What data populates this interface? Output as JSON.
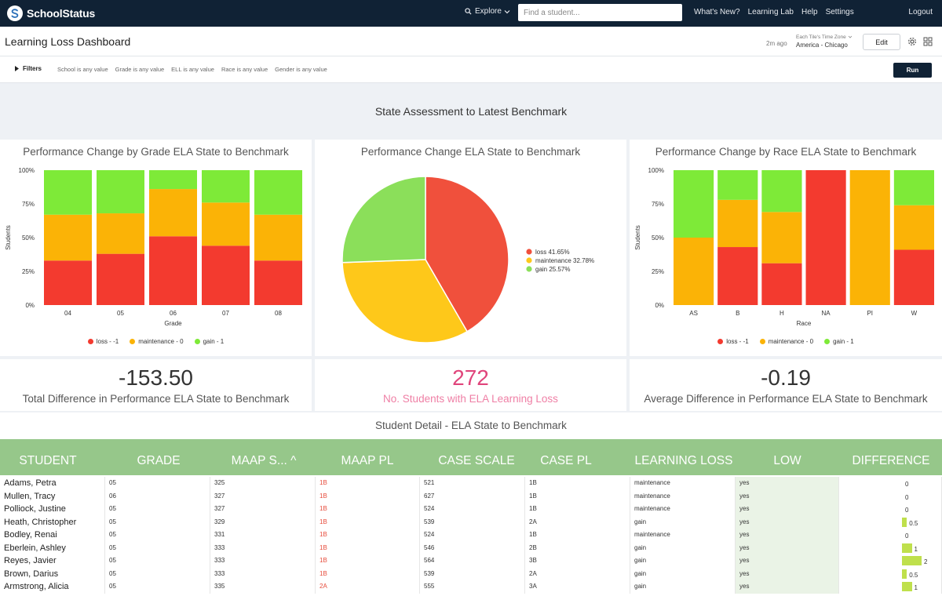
{
  "app": {
    "name": "SchoolStatus"
  },
  "topnav": {
    "explore": "Explore",
    "search_placeholder": "Find a student...",
    "links": [
      "What's New?",
      "Learning Lab",
      "Help",
      "Settings"
    ],
    "logout": "Logout"
  },
  "dashboard": {
    "title": "Learning Loss Dashboard",
    "updated": "2m ago",
    "timezone_label": "Each Tile's Time Zone",
    "timezone_value": "America - Chicago",
    "edit_label": "Edit"
  },
  "filters": {
    "label": "Filters",
    "items": [
      "School is any value",
      "Grade is any value",
      "ELL is any value",
      "Race is any value",
      "Gender is any value"
    ],
    "run_label": "Run"
  },
  "section_title": "State Assessment to Latest Benchmark",
  "colors": {
    "loss": "#f33a2f",
    "maintenance": "#fbb306",
    "gain": "#7eea38",
    "kpi_accent": "#e0457b"
  },
  "chart_data": [
    {
      "type": "bar",
      "stacked": true,
      "title": "Performance Change by Grade ELA State to Benchmark",
      "xlabel": "Grade",
      "ylabel": "Students",
      "yticks": [
        "0%",
        "25%",
        "50%",
        "75%",
        "100%"
      ],
      "ylim": [
        0,
        100
      ],
      "categories": [
        "04",
        "05",
        "06",
        "07",
        "08"
      ],
      "series": [
        {
          "name": "loss - -1",
          "color": "#f33a2f",
          "values": [
            33,
            38,
            51,
            44,
            33
          ]
        },
        {
          "name": "maintenance - 0",
          "color": "#fbb306",
          "values": [
            34,
            30,
            35,
            32,
            34
          ]
        },
        {
          "name": "gain - 1",
          "color": "#7eea38",
          "values": [
            33,
            32,
            14,
            24,
            33
          ]
        }
      ],
      "legend": "bottom"
    },
    {
      "type": "pie",
      "title": "Performance Change ELA State to Benchmark",
      "slices": [
        {
          "label": "loss 41.65%",
          "value": 41.65,
          "color": "#f0503c"
        },
        {
          "label": "maintenance 32.78%",
          "value": 32.78,
          "color": "#fec81a"
        },
        {
          "label": "gain 25.57%",
          "value": 25.57,
          "color": "#8bdf5a"
        }
      ],
      "legend": "right"
    },
    {
      "type": "bar",
      "stacked": true,
      "title": "Performance Change by Race ELA State to Benchmark",
      "xlabel": "Race",
      "ylabel": "Students",
      "yticks": [
        "0%",
        "25%",
        "50%",
        "75%",
        "100%"
      ],
      "ylim": [
        0,
        100
      ],
      "categories": [
        "AS",
        "B",
        "H",
        "NA",
        "PI",
        "W"
      ],
      "series": [
        {
          "name": "loss - -1",
          "color": "#f33a2f",
          "values": [
            0,
            43,
            31,
            100,
            0,
            41
          ]
        },
        {
          "name": "maintenance - 0",
          "color": "#fbb306",
          "values": [
            50,
            35,
            38,
            0,
            100,
            33
          ]
        },
        {
          "name": "gain - 1",
          "color": "#7eea38",
          "values": [
            50,
            22,
            31,
            0,
            0,
            26
          ]
        }
      ],
      "legend": "bottom"
    }
  ],
  "kpis": [
    {
      "value": "-153.50",
      "label": "Total Difference in Performance ELA State to Benchmark"
    },
    {
      "value": "272",
      "label": "No. Students with ELA Learning Loss"
    },
    {
      "value": "-0.19",
      "label": "Average Difference in Performance ELA State to Benchmark"
    }
  ],
  "detail_title": "Student Detail - ELA State to Benchmark",
  "table": {
    "columns": [
      "STUDENT",
      "GRADE",
      "MAAP S... ^",
      "MAAP PL",
      "CASE SCALE",
      "CASE PL",
      "LEARNING LOSS",
      "LOW PERFORMING",
      "DIFFERENCE"
    ],
    "rows": [
      {
        "student": "Adams, Petra",
        "grade": "05",
        "maap_s": "325",
        "maap_pl": "1B",
        "case_scale": "521",
        "case_pl": "1B",
        "learning_loss": "maintenance",
        "low": "yes",
        "diff": "0",
        "diff_num": 0
      },
      {
        "student": "Mullen, Tracy",
        "grade": "06",
        "maap_s": "327",
        "maap_pl": "1B",
        "case_scale": "627",
        "case_pl": "1B",
        "learning_loss": "maintenance",
        "low": "yes",
        "diff": "0",
        "diff_num": 0
      },
      {
        "student": "Polliock, Justine",
        "grade": "05",
        "maap_s": "327",
        "maap_pl": "1B",
        "case_scale": "524",
        "case_pl": "1B",
        "learning_loss": "maintenance",
        "low": "yes",
        "diff": "0",
        "diff_num": 0
      },
      {
        "student": "Heath, Christopher",
        "grade": "05",
        "maap_s": "329",
        "maap_pl": "1B",
        "case_scale": "539",
        "case_pl": "2A",
        "learning_loss": "gain",
        "low": "yes",
        "diff": "0.5",
        "diff_num": 0.5
      },
      {
        "student": "Bodley, Renai",
        "grade": "05",
        "maap_s": "331",
        "maap_pl": "1B",
        "case_scale": "524",
        "case_pl": "1B",
        "learning_loss": "maintenance",
        "low": "yes",
        "diff": "0",
        "diff_num": 0
      },
      {
        "student": "Eberlein, Ashley",
        "grade": "05",
        "maap_s": "333",
        "maap_pl": "1B",
        "case_scale": "546",
        "case_pl": "2B",
        "learning_loss": "gain",
        "low": "yes",
        "diff": "1",
        "diff_num": 1
      },
      {
        "student": "Reyes, Javier",
        "grade": "05",
        "maap_s": "333",
        "maap_pl": "1B",
        "case_scale": "564",
        "case_pl": "3B",
        "learning_loss": "gain",
        "low": "yes",
        "diff": "2",
        "diff_num": 2
      },
      {
        "student": "Brown, Darius",
        "grade": "05",
        "maap_s": "333",
        "maap_pl": "1B",
        "case_scale": "539",
        "case_pl": "2A",
        "learning_loss": "gain",
        "low": "yes",
        "diff": "0.5",
        "diff_num": 0.5
      },
      {
        "student": "Armstrong, Alicia",
        "grade": "05",
        "maap_s": "335",
        "maap_pl": "2A",
        "case_scale": "555",
        "case_pl": "3A",
        "learning_loss": "gain",
        "low": "yes",
        "diff": "1",
        "diff_num": 1
      }
    ]
  }
}
